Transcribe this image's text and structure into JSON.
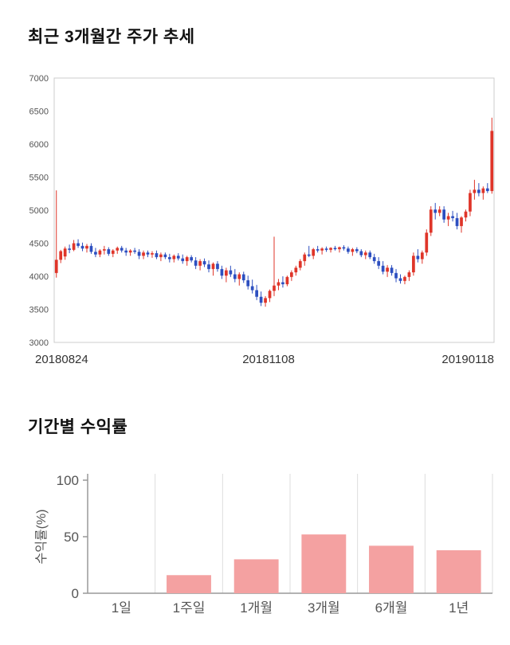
{
  "sections": {
    "price_chart": {
      "title": "최근 3개월간 주가 추세"
    },
    "returns_chart": {
      "title": "기간별 수익률"
    }
  },
  "colors": {
    "candle_up": "#df3529",
    "candle_down": "#2d4fc0",
    "bar_fill": "#f4a1a1",
    "axis": "#999999",
    "grid": "#dddddd",
    "plot_border": "#cccccc",
    "tick_text": "#555555",
    "date_text": "#333333"
  },
  "chart_data": [
    {
      "type": "candlestick",
      "title": "최근 3개월간 주가 추세",
      "ylim": [
        3000,
        7000
      ],
      "y_ticks": [
        3000,
        3500,
        4000,
        4500,
        5000,
        5500,
        6000,
        6500,
        7000
      ],
      "x_tick_labels": [
        "20180824",
        "20181108",
        "20190118"
      ],
      "grid": false,
      "candles": [
        [
          4050,
          5300,
          3980,
          4250
        ],
        [
          4250,
          4400,
          4200,
          4380
        ],
        [
          4300,
          4450,
          4250,
          4420
        ],
        [
          4420,
          4480,
          4350,
          4400
        ],
        [
          4400,
          4550,
          4380,
          4500
        ],
        [
          4500,
          4560,
          4430,
          4460
        ],
        [
          4460,
          4510,
          4380,
          4420
        ],
        [
          4420,
          4490,
          4360,
          4460
        ],
        [
          4460,
          4500,
          4340,
          4370
        ],
        [
          4370,
          4430,
          4290,
          4330
        ],
        [
          4330,
          4410,
          4290,
          4390
        ],
        [
          4390,
          4460,
          4330,
          4410
        ],
        [
          4410,
          4440,
          4310,
          4340
        ],
        [
          4340,
          4410,
          4290,
          4390
        ],
        [
          4390,
          4450,
          4340,
          4430
        ],
        [
          4430,
          4460,
          4360,
          4390
        ],
        [
          4390,
          4430,
          4310,
          4360
        ],
        [
          4360,
          4410,
          4310,
          4390
        ],
        [
          4390,
          4430,
          4340,
          4370
        ],
        [
          4370,
          4410,
          4260,
          4310
        ],
        [
          4310,
          4390,
          4260,
          4360
        ],
        [
          4360,
          4390,
          4290,
          4330
        ],
        [
          4330,
          4380,
          4280,
          4350
        ],
        [
          4350,
          4390,
          4260,
          4290
        ],
        [
          4290,
          4360,
          4230,
          4330
        ],
        [
          4330,
          4360,
          4260,
          4290
        ],
        [
          4290,
          4340,
          4210,
          4260
        ],
        [
          4260,
          4330,
          4210,
          4310
        ],
        [
          4310,
          4350,
          4240,
          4270
        ],
        [
          4270,
          4330,
          4190,
          4230
        ],
        [
          4230,
          4310,
          4160,
          4290
        ],
        [
          4290,
          4320,
          4210,
          4240
        ],
        [
          4240,
          4290,
          4110,
          4160
        ],
        [
          4160,
          4260,
          4090,
          4230
        ],
        [
          4230,
          4270,
          4140,
          4180
        ],
        [
          4180,
          4240,
          4060,
          4110
        ],
        [
          4110,
          4210,
          4010,
          4190
        ],
        [
          4190,
          4230,
          4070,
          4110
        ],
        [
          4110,
          4160,
          3960,
          4010
        ],
        [
          4010,
          4130,
          3910,
          4090
        ],
        [
          4090,
          4160,
          3990,
          4030
        ],
        [
          4030,
          4110,
          3910,
          3960
        ],
        [
          3960,
          4060,
          3860,
          4030
        ],
        [
          4030,
          4070,
          3900,
          3940
        ],
        [
          3940,
          4010,
          3800,
          3850
        ],
        [
          3850,
          3950,
          3740,
          3790
        ],
        [
          3790,
          3870,
          3640,
          3690
        ],
        [
          3690,
          3770,
          3550,
          3600
        ],
        [
          3600,
          3700,
          3540,
          3670
        ],
        [
          3670,
          3800,
          3610,
          3780
        ],
        [
          3780,
          4600,
          3700,
          3860
        ],
        [
          3860,
          3960,
          3790,
          3910
        ],
        [
          3910,
          4000,
          3830,
          3880
        ],
        [
          3880,
          4010,
          3850,
          3990
        ],
        [
          3990,
          4090,
          3930,
          4060
        ],
        [
          4060,
          4160,
          4010,
          4130
        ],
        [
          4130,
          4260,
          4090,
          4230
        ],
        [
          4230,
          4360,
          4160,
          4330
        ],
        [
          4330,
          4460,
          4290,
          4310
        ],
        [
          4310,
          4430,
          4260,
          4410
        ],
        [
          4410,
          4460,
          4360,
          4390
        ],
        [
          4390,
          4440,
          4330,
          4420
        ],
        [
          4420,
          4450,
          4370,
          4400
        ],
        [
          4400,
          4440,
          4360,
          4430
        ],
        [
          4430,
          4460,
          4390,
          4410
        ],
        [
          4410,
          4450,
          4360,
          4440
        ],
        [
          4440,
          4470,
          4390,
          4420
        ],
        [
          4420,
          4450,
          4340,
          4370
        ],
        [
          4370,
          4430,
          4310,
          4410
        ],
        [
          4410,
          4440,
          4350,
          4380
        ],
        [
          4380,
          4410,
          4290,
          4320
        ],
        [
          4320,
          4390,
          4260,
          4360
        ],
        [
          4360,
          4390,
          4260,
          4290
        ],
        [
          4290,
          4340,
          4190,
          4230
        ],
        [
          4230,
          4290,
          4110,
          4160
        ],
        [
          4160,
          4230,
          4030,
          4070
        ],
        [
          4070,
          4170,
          3990,
          4130
        ],
        [
          4130,
          4170,
          4010,
          4050
        ],
        [
          4050,
          4110,
          3910,
          3970
        ],
        [
          3970,
          4030,
          3890,
          3930
        ],
        [
          3930,
          4010,
          3880,
          3990
        ],
        [
          3990,
          4090,
          3930,
          4060
        ],
        [
          4060,
          4360,
          4010,
          4310
        ],
        [
          4310,
          4410,
          4210,
          4260
        ],
        [
          4260,
          4390,
          4190,
          4360
        ],
        [
          4360,
          4710,
          4310,
          4660
        ],
        [
          4660,
          5060,
          4610,
          5010
        ],
        [
          5010,
          5110,
          4860,
          4960
        ],
        [
          4960,
          5060,
          4910,
          5010
        ],
        [
          5010,
          5060,
          4810,
          4860
        ],
        [
          4860,
          4960,
          4760,
          4910
        ],
        [
          4910,
          4990,
          4830,
          4880
        ],
        [
          4880,
          4960,
          4710,
          4760
        ],
        [
          4760,
          4910,
          4660,
          4890
        ],
        [
          4890,
          5010,
          4830,
          4980
        ],
        [
          4980,
          5310,
          4910,
          5260
        ],
        [
          5260,
          5460,
          5160,
          5310
        ],
        [
          5310,
          5410,
          5210,
          5260
        ],
        [
          5260,
          5360,
          5160,
          5330
        ],
        [
          5330,
          5410,
          5260,
          5290
        ],
        [
          5290,
          6400,
          5250,
          6200
        ]
      ]
    },
    {
      "type": "bar",
      "title": "기간별 수익률",
      "categories": [
        "1일",
        "1주일",
        "1개월",
        "3개월",
        "6개월",
        "1년"
      ],
      "values": [
        0,
        16,
        30,
        52,
        42,
        38
      ],
      "ylabel": "수익률(%)",
      "y_ticks": [
        0,
        50,
        100
      ],
      "ylim": [
        0,
        100
      ],
      "grid": true,
      "legend": "none"
    }
  ]
}
